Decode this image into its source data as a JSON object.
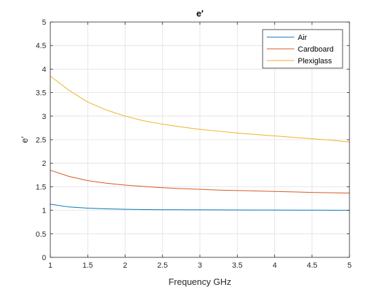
{
  "chart_data": {
    "type": "line",
    "title": "e′",
    "xlabel": "Frequency GHz",
    "ylabel": "e′",
    "xlim": [
      1,
      5
    ],
    "ylim": [
      0,
      5
    ],
    "xticks": [
      "1",
      "1.5",
      "2",
      "2.5",
      "3",
      "3.5",
      "4",
      "4.5",
      "5"
    ],
    "yticks": [
      "0",
      "0.5",
      "1",
      "1.5",
      "2",
      "2.5",
      "3",
      "3.5",
      "4",
      "4.5",
      "5"
    ],
    "grid": true,
    "legend_position": "top-right",
    "x": [
      1.0,
      1.25,
      1.5,
      1.75,
      2.0,
      2.25,
      2.5,
      2.75,
      3.0,
      3.25,
      3.5,
      3.75,
      4.0,
      4.25,
      4.5,
      4.75,
      5.0
    ],
    "series": [
      {
        "name": "Air",
        "color": "#0072BD",
        "values": [
          1.13,
          1.07,
          1.045,
          1.03,
          1.022,
          1.017,
          1.013,
          1.011,
          1.01,
          1.008,
          1.007,
          1.006,
          1.005,
          1.004,
          1.003,
          1.002,
          1.0
        ]
      },
      {
        "name": "Cardboard",
        "color": "#D95319",
        "values": [
          1.85,
          1.72,
          1.63,
          1.575,
          1.535,
          1.505,
          1.48,
          1.46,
          1.445,
          1.43,
          1.42,
          1.41,
          1.4,
          1.39,
          1.38,
          1.372,
          1.365
        ]
      },
      {
        "name": "Plexiglass",
        "color": "#EDB120",
        "values": [
          3.85,
          3.55,
          3.3,
          3.13,
          3.0,
          2.9,
          2.83,
          2.77,
          2.72,
          2.68,
          2.64,
          2.61,
          2.58,
          2.55,
          2.52,
          2.49,
          2.45
        ]
      }
    ]
  }
}
